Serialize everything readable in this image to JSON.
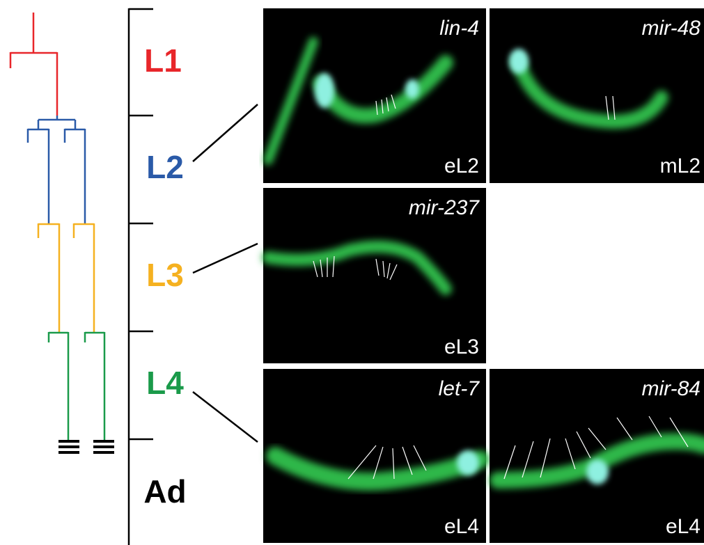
{
  "stages": [
    {
      "label": "L1"
    },
    {
      "label": "L2"
    },
    {
      "label": "L3"
    },
    {
      "label": "L4"
    },
    {
      "label": "Ad"
    }
  ],
  "panels": [
    {
      "gene": "lin-4",
      "stage": "eL2"
    },
    {
      "gene": "mir-48",
      "stage": "mL2"
    },
    {
      "gene": "mir-237",
      "stage": "eL3"
    },
    {
      "gene": "let-7",
      "stage": "eL4"
    },
    {
      "gene": "mir-84",
      "stage": "eL4"
    }
  ]
}
